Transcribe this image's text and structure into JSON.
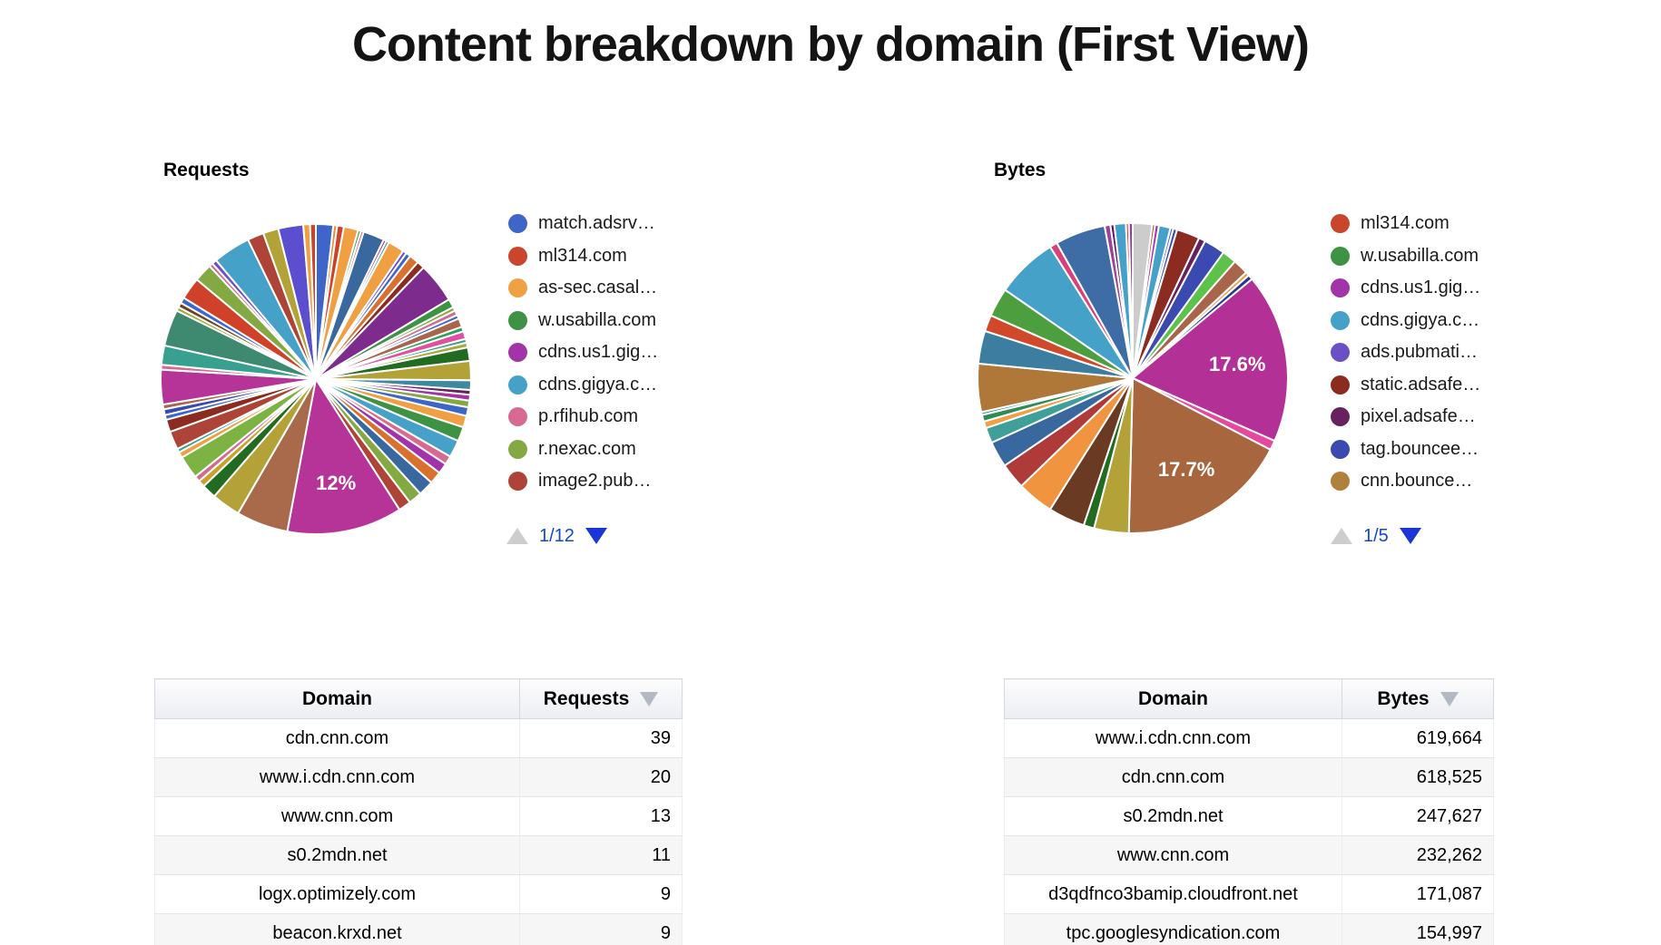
{
  "title": "Content breakdown by domain (First View)",
  "chart_data": [
    {
      "type": "pie",
      "title": "Requests",
      "legend_position": "right",
      "pagination": "1/12",
      "legend": [
        {
          "label": "match.adsrv…",
          "color": "#3E66C8"
        },
        {
          "label": "ml314.com",
          "color": "#C9452C"
        },
        {
          "label": "as-sec.casal…",
          "color": "#EFA143"
        },
        {
          "label": "w.usabilla.com",
          "color": "#3E9243"
        },
        {
          "label": "cdns.us1.gig…",
          "color": "#A233A8"
        },
        {
          "label": "cdns.gigya.c…",
          "color": "#45A1C8"
        },
        {
          "label": "p.rfihub.com",
          "color": "#D66A90"
        },
        {
          "label": "r.nexac.com",
          "color": "#84A943"
        },
        {
          "label": "image2.pub…",
          "color": "#AE4438"
        }
      ],
      "slices": [
        {
          "color": "#3E66C8",
          "value": 1.8
        },
        {
          "color": "#E8923D",
          "value": 0.4
        },
        {
          "color": "#D04129",
          "value": 0.7
        },
        {
          "color": "#F09F42",
          "value": 1.5
        },
        {
          "color": "#3E9243",
          "value": 0.3
        },
        {
          "color": "#D66A90",
          "value": 0.3
        },
        {
          "color": "#38689E",
          "value": 2.2
        },
        {
          "color": "#A233A8",
          "value": 0.3
        },
        {
          "color": "#37A08E",
          "value": 0.3
        },
        {
          "color": "#F09F42",
          "value": 1.7
        },
        {
          "color": "#6A50C4",
          "value": 0.4
        },
        {
          "color": "#3E66C8",
          "value": 0.5
        },
        {
          "color": "#D9702E",
          "value": 1.0
        },
        {
          "color": "#8C2B20",
          "value": 0.8
        },
        {
          "color": "#7D2C8E",
          "value": 4.2
        },
        {
          "color": "#3E9243",
          "value": 0.9
        },
        {
          "color": "#84A943",
          "value": 0.4
        },
        {
          "color": "#D66A90",
          "value": 0.5
        },
        {
          "color": "#3E66C8",
          "value": 0.4
        },
        {
          "color": "#A9654C",
          "value": 0.9
        },
        {
          "color": "#2EA05C",
          "value": 0.5
        },
        {
          "color": "#E04FA0",
          "value": 0.8
        },
        {
          "color": "#37A08E",
          "value": 0.4
        },
        {
          "color": "#A8A83B",
          "value": 0.5
        },
        {
          "color": "#226B22",
          "value": 1.4
        },
        {
          "color": "#B3A238",
          "value": 2.0
        },
        {
          "color": "#3D8AA0",
          "value": 1.0
        },
        {
          "color": "#69205E",
          "value": 0.5
        },
        {
          "color": "#A233A8",
          "value": 0.6
        },
        {
          "color": "#84A943",
          "value": 0.7
        },
        {
          "color": "#3E66C8",
          "value": 0.9
        },
        {
          "color": "#F09F42",
          "value": 1.2
        },
        {
          "color": "#3E9243",
          "value": 1.5
        },
        {
          "color": "#45A1C8",
          "value": 1.8
        },
        {
          "color": "#D66A90",
          "value": 0.9
        },
        {
          "color": "#A233A8",
          "value": 1.1
        },
        {
          "color": "#D9702E",
          "value": 1.3
        },
        {
          "color": "#38689E",
          "value": 1.6
        },
        {
          "color": "#84A943",
          "value": 1.4
        },
        {
          "color": "#AE4438",
          "value": 1.3
        },
        {
          "color": "#B63397",
          "value": 12.0,
          "label": "12%"
        },
        {
          "color": "#A96A4B",
          "value": 5.4
        },
        {
          "color": "#B3A238",
          "value": 3.0
        },
        {
          "color": "#226B22",
          "value": 1.5
        },
        {
          "color": "#C9A227",
          "value": 0.7
        },
        {
          "color": "#D66A90",
          "value": 0.6
        },
        {
          "color": "#7CB342",
          "value": 2.4
        },
        {
          "color": "#F09F42",
          "value": 0.6
        },
        {
          "color": "#37A08E",
          "value": 0.4
        },
        {
          "color": "#AE4438",
          "value": 1.9
        },
        {
          "color": "#8C2B20",
          "value": 1.3
        },
        {
          "color": "#3E66C8",
          "value": 0.5
        },
        {
          "color": "#3B4AB0",
          "value": 0.6
        },
        {
          "color": "#A9654C",
          "value": 0.5
        },
        {
          "color": "#B63397",
          "value": 3.6
        },
        {
          "color": "#D66A90",
          "value": 0.5
        },
        {
          "color": "#37A08E",
          "value": 2.0
        },
        {
          "color": "#3D8A70",
          "value": 3.8
        },
        {
          "color": "#A8A83B",
          "value": 0.4
        },
        {
          "color": "#6B4226",
          "value": 0.5
        },
        {
          "color": "#3E66C8",
          "value": 0.6
        },
        {
          "color": "#D04129",
          "value": 2.3
        },
        {
          "color": "#84A943",
          "value": 1.9
        },
        {
          "color": "#D66A90",
          "value": 0.4
        },
        {
          "color": "#6A50C4",
          "value": 0.5
        },
        {
          "color": "#45A1C8",
          "value": 3.9
        },
        {
          "color": "#AE4438",
          "value": 1.7
        },
        {
          "color": "#B3A238",
          "value": 1.6
        },
        {
          "color": "#5B4FCF",
          "value": 2.6
        },
        {
          "color": "#F09F42",
          "value": 0.7
        },
        {
          "color": "#D04129",
          "value": 0.6
        }
      ]
    },
    {
      "type": "pie",
      "title": "Bytes",
      "legend_position": "right",
      "pagination": "1/5",
      "legend": [
        {
          "label": "ml314.com",
          "color": "#C9452C"
        },
        {
          "label": "w.usabilla.com",
          "color": "#3E9243"
        },
        {
          "label": "cdns.us1.gig…",
          "color": "#A233A8"
        },
        {
          "label": "cdns.gigya.c…",
          "color": "#45A1C8"
        },
        {
          "label": "ads.pubmati…",
          "color": "#6A50C4"
        },
        {
          "label": "static.adsafe…",
          "color": "#8C2B20"
        },
        {
          "label": "pixel.adsafe…",
          "color": "#69205E"
        },
        {
          "label": "tag.bouncee…",
          "color": "#3B4AB0"
        },
        {
          "label": "cnn.bounce…",
          "color": "#B0813B"
        }
      ],
      "slices": [
        {
          "color": "#CCCCCC",
          "value": 2.0
        },
        {
          "color": "#D04129",
          "value": 0.3
        },
        {
          "color": "#A233A8",
          "value": 0.4
        },
        {
          "color": "#45A1C8",
          "value": 1.2
        },
        {
          "color": "#3E66C8",
          "value": 0.3
        },
        {
          "color": "#3B4AB0",
          "value": 0.4
        },
        {
          "color": "#8C2B20",
          "value": 2.4
        },
        {
          "color": "#69205E",
          "value": 0.7
        },
        {
          "color": "#3B4AB0",
          "value": 2.2
        },
        {
          "color": "#5CC24C",
          "value": 1.5
        },
        {
          "color": "#A9654C",
          "value": 1.6
        },
        {
          "color": "#F09F42",
          "value": 0.4
        },
        {
          "color": "#283593",
          "value": 0.5
        },
        {
          "color": "#B33197",
          "value": 17.6,
          "label": "17.6%"
        },
        {
          "color": "#E8479E",
          "value": 1.0
        },
        {
          "color": "#A8663F",
          "value": 17.7,
          "label": "17.7%"
        },
        {
          "color": "#B3A238",
          "value": 3.6
        },
        {
          "color": "#226B22",
          "value": 1.1
        },
        {
          "color": "#6B3A22",
          "value": 3.8
        },
        {
          "color": "#F09440",
          "value": 3.8
        },
        {
          "color": "#AE3A3A",
          "value": 2.7
        },
        {
          "color": "#38689E",
          "value": 2.7
        },
        {
          "color": "#3FA09A",
          "value": 1.6
        },
        {
          "color": "#F09F42",
          "value": 0.7
        },
        {
          "color": "#2E8B57",
          "value": 0.7
        },
        {
          "color": "#37A08E",
          "value": 0.3
        },
        {
          "color": "#B07838",
          "value": 5.0
        },
        {
          "color": "#3D7EA0",
          "value": 3.4
        },
        {
          "color": "#D1492B",
          "value": 1.7
        },
        {
          "color": "#4C9E3F",
          "value": 3.0
        },
        {
          "color": "#45A1C8",
          "value": 6.4
        },
        {
          "color": "#D8417E",
          "value": 0.8
        },
        {
          "color": "#3E6DA5",
          "value": 5.2
        },
        {
          "color": "#994499",
          "value": 0.6
        },
        {
          "color": "#651067",
          "value": 0.4
        },
        {
          "color": "#45A1C8",
          "value": 1.2
        },
        {
          "color": "#D04129",
          "value": 0.3
        },
        {
          "color": "#A233A8",
          "value": 0.4
        }
      ]
    }
  ],
  "tables": {
    "requests": {
      "headers": [
        "Domain",
        "Requests"
      ],
      "rows": [
        [
          "cdn.cnn.com",
          "39"
        ],
        [
          "www.i.cdn.cnn.com",
          "20"
        ],
        [
          "www.cnn.com",
          "13"
        ],
        [
          "s0.2mdn.net",
          "11"
        ],
        [
          "logx.optimizely.com",
          "9"
        ],
        [
          "beacon.krxd.net",
          "9"
        ]
      ]
    },
    "bytes": {
      "headers": [
        "Domain",
        "Bytes"
      ],
      "rows": [
        [
          "www.i.cdn.cnn.com",
          "619,664"
        ],
        [
          "cdn.cnn.com",
          "618,525"
        ],
        [
          "s0.2mdn.net",
          "247,627"
        ],
        [
          "www.cnn.com",
          "232,262"
        ],
        [
          "d3qdfnco3bamip.cloudfront.net",
          "171,087"
        ],
        [
          "tpc.googlesyndication.com",
          "154,997"
        ]
      ]
    }
  }
}
